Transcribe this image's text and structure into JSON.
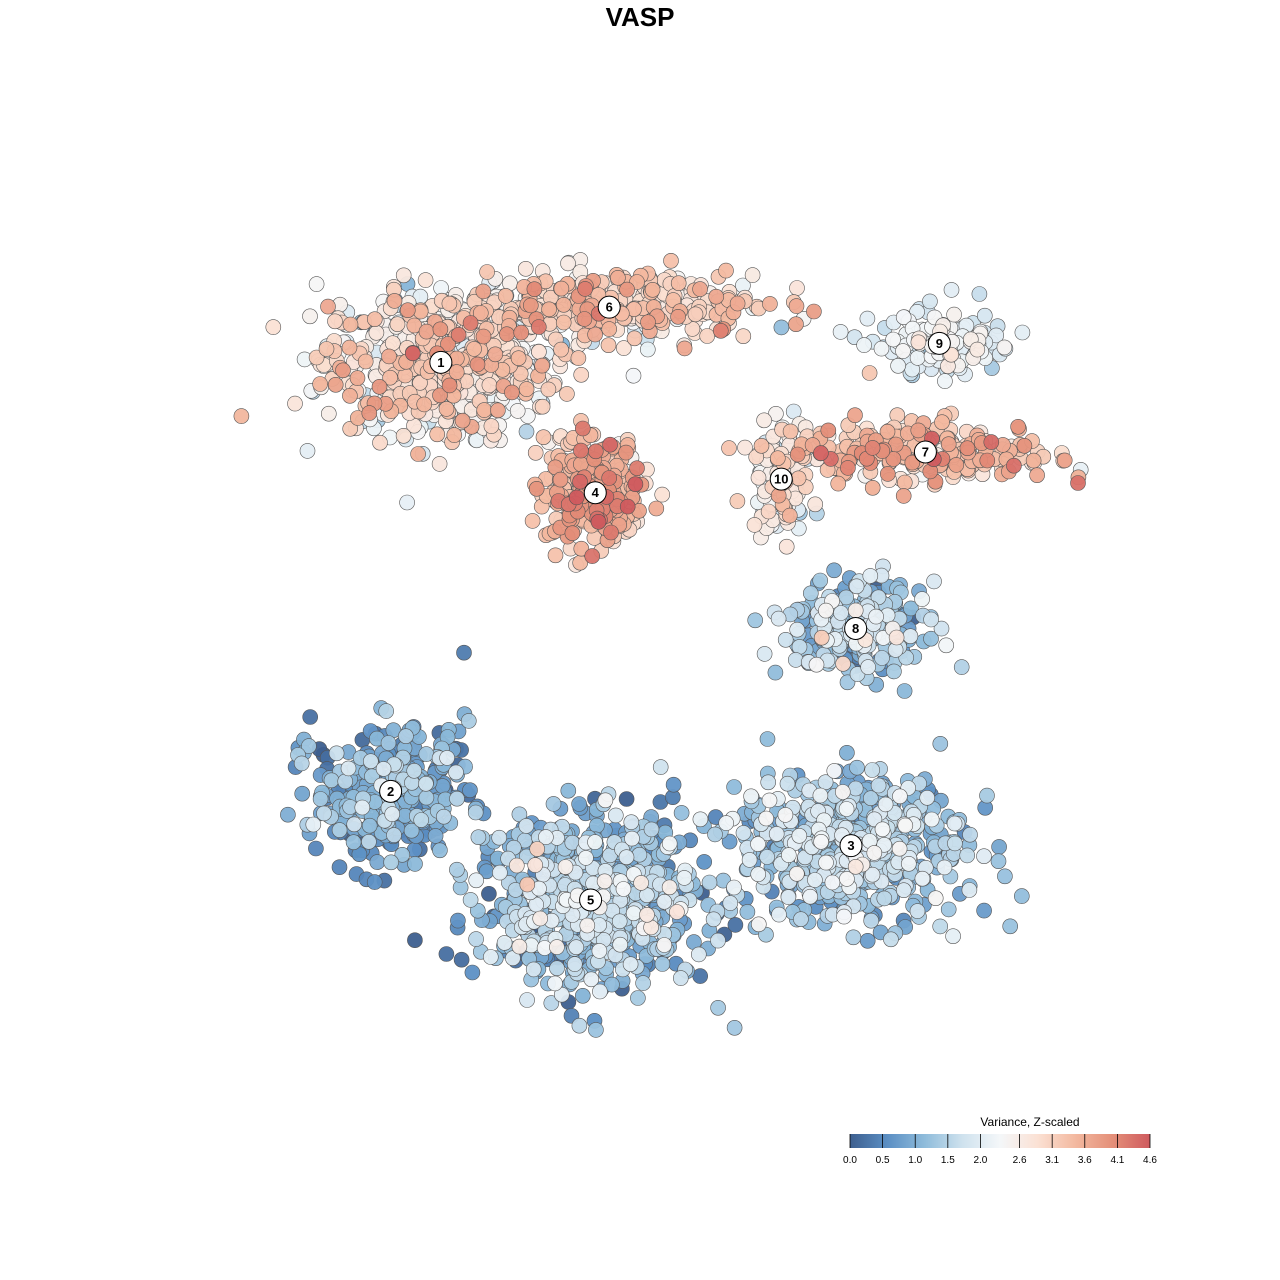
{
  "chart_data": {
    "type": "scatter",
    "title": "VASP",
    "xlabel": "",
    "ylabel": "",
    "grid": false,
    "legend": {
      "title": "Variance, Z-scaled",
      "position": "bottom-right",
      "ticks": [
        "0.0",
        "0.5",
        "1.0",
        "1.5",
        "2.0",
        "2.6",
        "3.1",
        "3.6",
        "4.1",
        "4.6"
      ],
      "range": [
        0.0,
        4.6
      ],
      "colors": [
        "#3d5f8f",
        "#5b8fc4",
        "#8fbcdb",
        "#cfe2ee",
        "#f4f7f9",
        "#fbe1d4",
        "#f3b9a0",
        "#e48f79",
        "#cf5a5e"
      ]
    },
    "xlim": [
      0,
      100
    ],
    "ylim": [
      0,
      100
    ],
    "clusters": [
      {
        "label": "1",
        "x": 25.9,
        "y": 80.4,
        "sx": 11.5,
        "sy": 7.0,
        "n": 650,
        "mean": 2.6,
        "sd": 0.6
      },
      {
        "label": "6",
        "x": 44.0,
        "y": 86.5,
        "sx": 14.0,
        "sy": 3.2,
        "n": 420,
        "mean": 2.8,
        "sd": 0.55
      },
      {
        "label": "4",
        "x": 42.5,
        "y": 66.0,
        "sx": 4.8,
        "sy": 5.2,
        "n": 330,
        "mean": 3.4,
        "sd": 0.5
      },
      {
        "label": "9",
        "x": 79.5,
        "y": 82.5,
        "sx": 6.5,
        "sy": 3.0,
        "n": 150,
        "mean": 2.0,
        "sd": 0.35
      },
      {
        "label": "7",
        "x": 78.0,
        "y": 70.5,
        "sx": 12.5,
        "sy": 3.0,
        "n": 230,
        "mean": 3.3,
        "sd": 0.5
      },
      {
        "label": "10",
        "x": 62.5,
        "y": 67.5,
        "sx": 3.0,
        "sy": 5.0,
        "n": 110,
        "mean": 2.5,
        "sd": 0.5
      },
      {
        "label": "8",
        "x": 70.5,
        "y": 51.0,
        "sx": 6.5,
        "sy": 4.5,
        "n": 280,
        "mean": 1.2,
        "sd": 0.6
      },
      {
        "label": "2",
        "x": 20.5,
        "y": 33.0,
        "sx": 7.5,
        "sy": 6.5,
        "n": 360,
        "mean": 0.8,
        "sd": 0.5
      },
      {
        "label": "3",
        "x": 70.0,
        "y": 27.0,
        "sx": 11.0,
        "sy": 7.5,
        "n": 620,
        "mean": 1.3,
        "sd": 0.5
      },
      {
        "label": "5",
        "x": 42.0,
        "y": 21.0,
        "sx": 11.0,
        "sy": 8.5,
        "n": 780,
        "mean": 1.1,
        "sd": 0.6
      }
    ]
  }
}
